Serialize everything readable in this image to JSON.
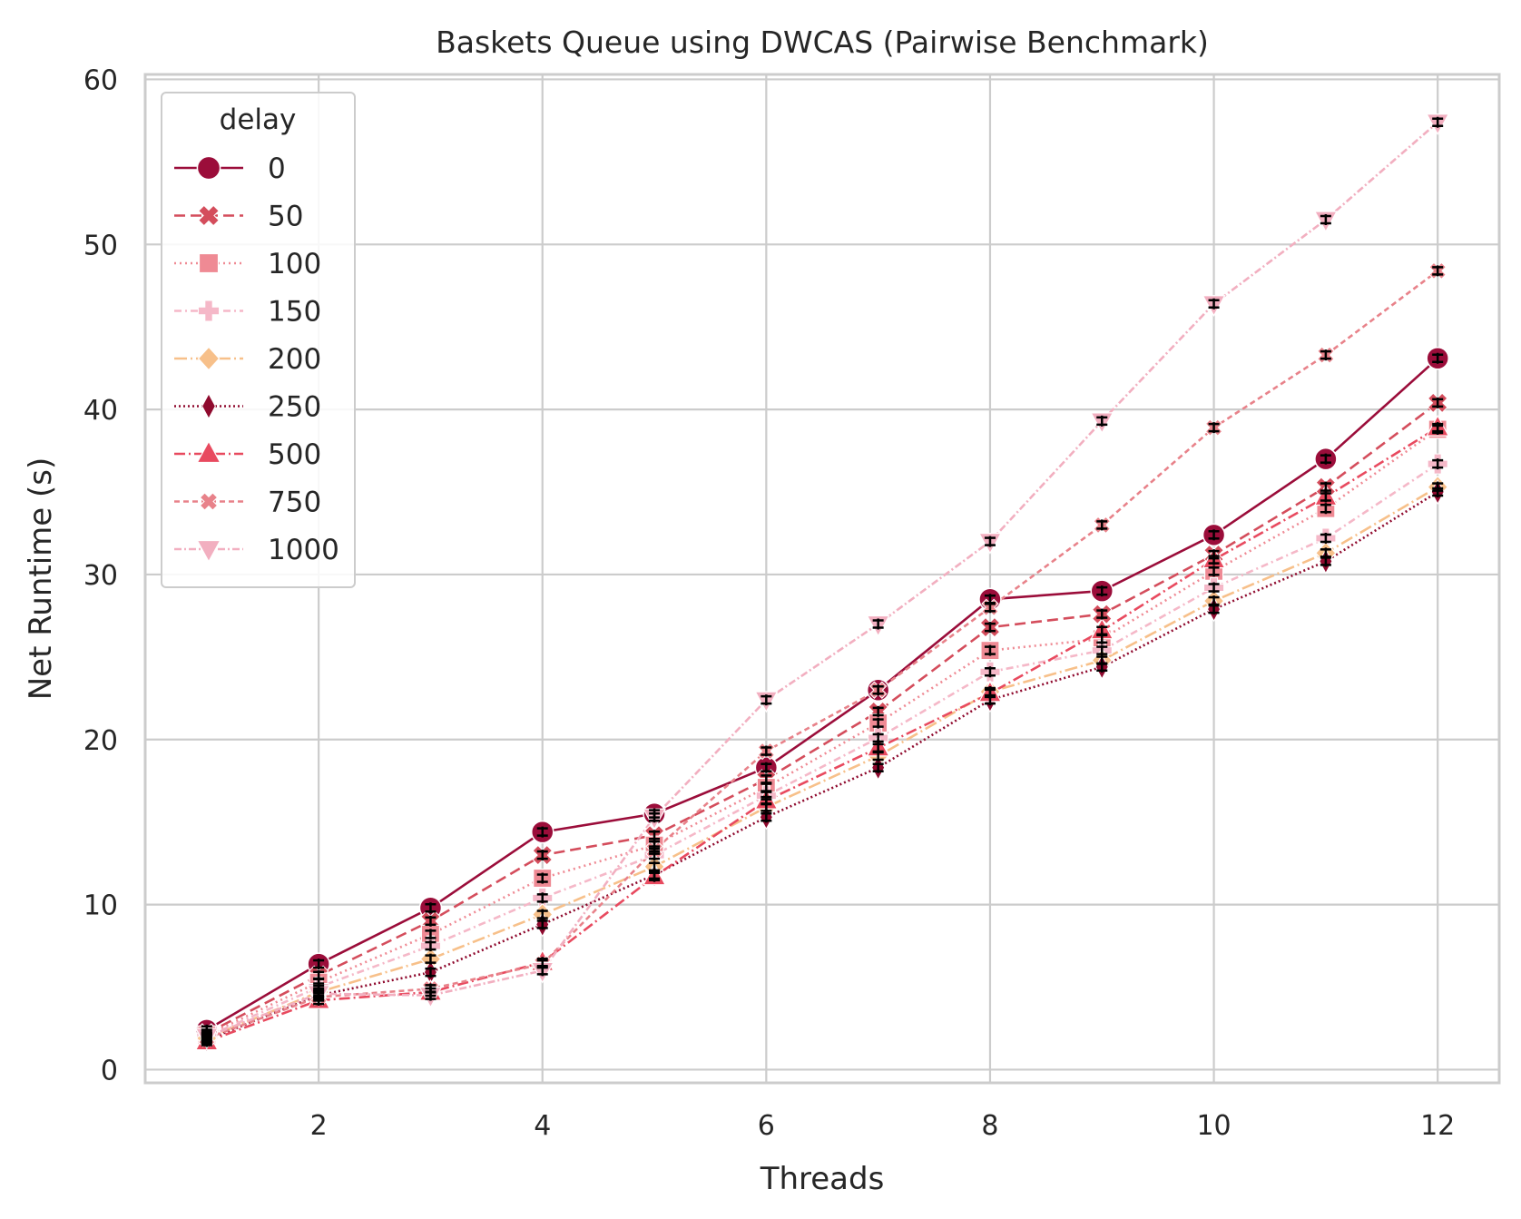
{
  "chart_data": {
    "type": "line",
    "title": "Baskets Queue using DWCAS (Pairwise Benchmark)",
    "xlabel": "Threads",
    "ylabel": "Net Runtime (s)",
    "x": [
      1,
      2,
      3,
      4,
      5,
      6,
      7,
      8,
      9,
      10,
      11,
      12
    ],
    "xticks": [
      2,
      4,
      6,
      8,
      10,
      12
    ],
    "yticks": [
      0,
      10,
      20,
      30,
      40,
      50,
      60
    ],
    "xlim": [
      0.45,
      12.55
    ],
    "ylim": [
      -0.8,
      60.3
    ],
    "grid": true,
    "legend_title": "delay",
    "legend_position": "upper left",
    "series": [
      {
        "name": "0",
        "color": "#9b0d3a",
        "dash": "",
        "marker": "circle",
        "values": [
          2.4,
          6.4,
          9.8,
          14.4,
          15.5,
          18.3,
          23.0,
          28.5,
          29.0,
          32.4,
          37.0,
          43.1
        ]
      },
      {
        "name": "50",
        "color": "#d44d5c",
        "dash": "12,6",
        "marker": "x",
        "values": [
          2.2,
          5.7,
          9.0,
          13.0,
          14.2,
          17.6,
          21.7,
          26.8,
          27.6,
          31.2,
          35.3,
          40.4
        ]
      },
      {
        "name": "100",
        "color": "#ef8a94",
        "dash": "2,4",
        "marker": "square",
        "values": [
          2.1,
          5.3,
          8.2,
          11.6,
          13.6,
          17.1,
          21.0,
          25.4,
          26.1,
          30.2,
          34.0,
          38.8
        ]
      },
      {
        "name": "150",
        "color": "#f5b8c8",
        "dash": "8,4,2,4",
        "marker": "plus",
        "values": [
          2.0,
          5.0,
          7.5,
          10.4,
          13.0,
          16.6,
          20.1,
          24.1,
          25.4,
          29.2,
          32.2,
          36.7
        ]
      },
      {
        "name": "200",
        "color": "#f7c08a",
        "dash": "14,4,2,4",
        "marker": "diamond",
        "values": [
          1.9,
          4.7,
          6.7,
          9.4,
          12.3,
          15.9,
          19.0,
          22.9,
          24.8,
          28.4,
          31.3,
          35.3
        ]
      },
      {
        "name": "250",
        "color": "#8f0a2e",
        "dash": "2,3",
        "marker": "thin-diamond",
        "values": [
          1.8,
          4.5,
          5.9,
          8.8,
          11.8,
          15.3,
          18.3,
          22.4,
          24.4,
          27.9,
          30.8,
          35.0
        ]
      },
      {
        "name": "500",
        "color": "#e84a5f",
        "dash": "12,4,2,4",
        "marker": "triangle-up",
        "values": [
          1.7,
          4.2,
          4.7,
          6.5,
          11.7,
          16.3,
          19.5,
          22.8,
          26.6,
          30.9,
          34.7,
          38.9
        ]
      },
      {
        "name": "750",
        "color": "#e8828a",
        "dash": "6,4",
        "marker": "x-small",
        "values": [
          1.9,
          4.4,
          4.9,
          6.4,
          13.3,
          19.3,
          23.0,
          28.0,
          33.0,
          38.9,
          43.3,
          48.4
        ]
      },
      {
        "name": "1000",
        "color": "#f2afc0",
        "dash": "8,3,2,3",
        "marker": "triangle-down",
        "values": [
          2.0,
          4.6,
          4.5,
          6.0,
          15.3,
          22.4,
          27.0,
          32.0,
          39.3,
          46.4,
          51.5,
          57.4
        ]
      }
    ]
  }
}
